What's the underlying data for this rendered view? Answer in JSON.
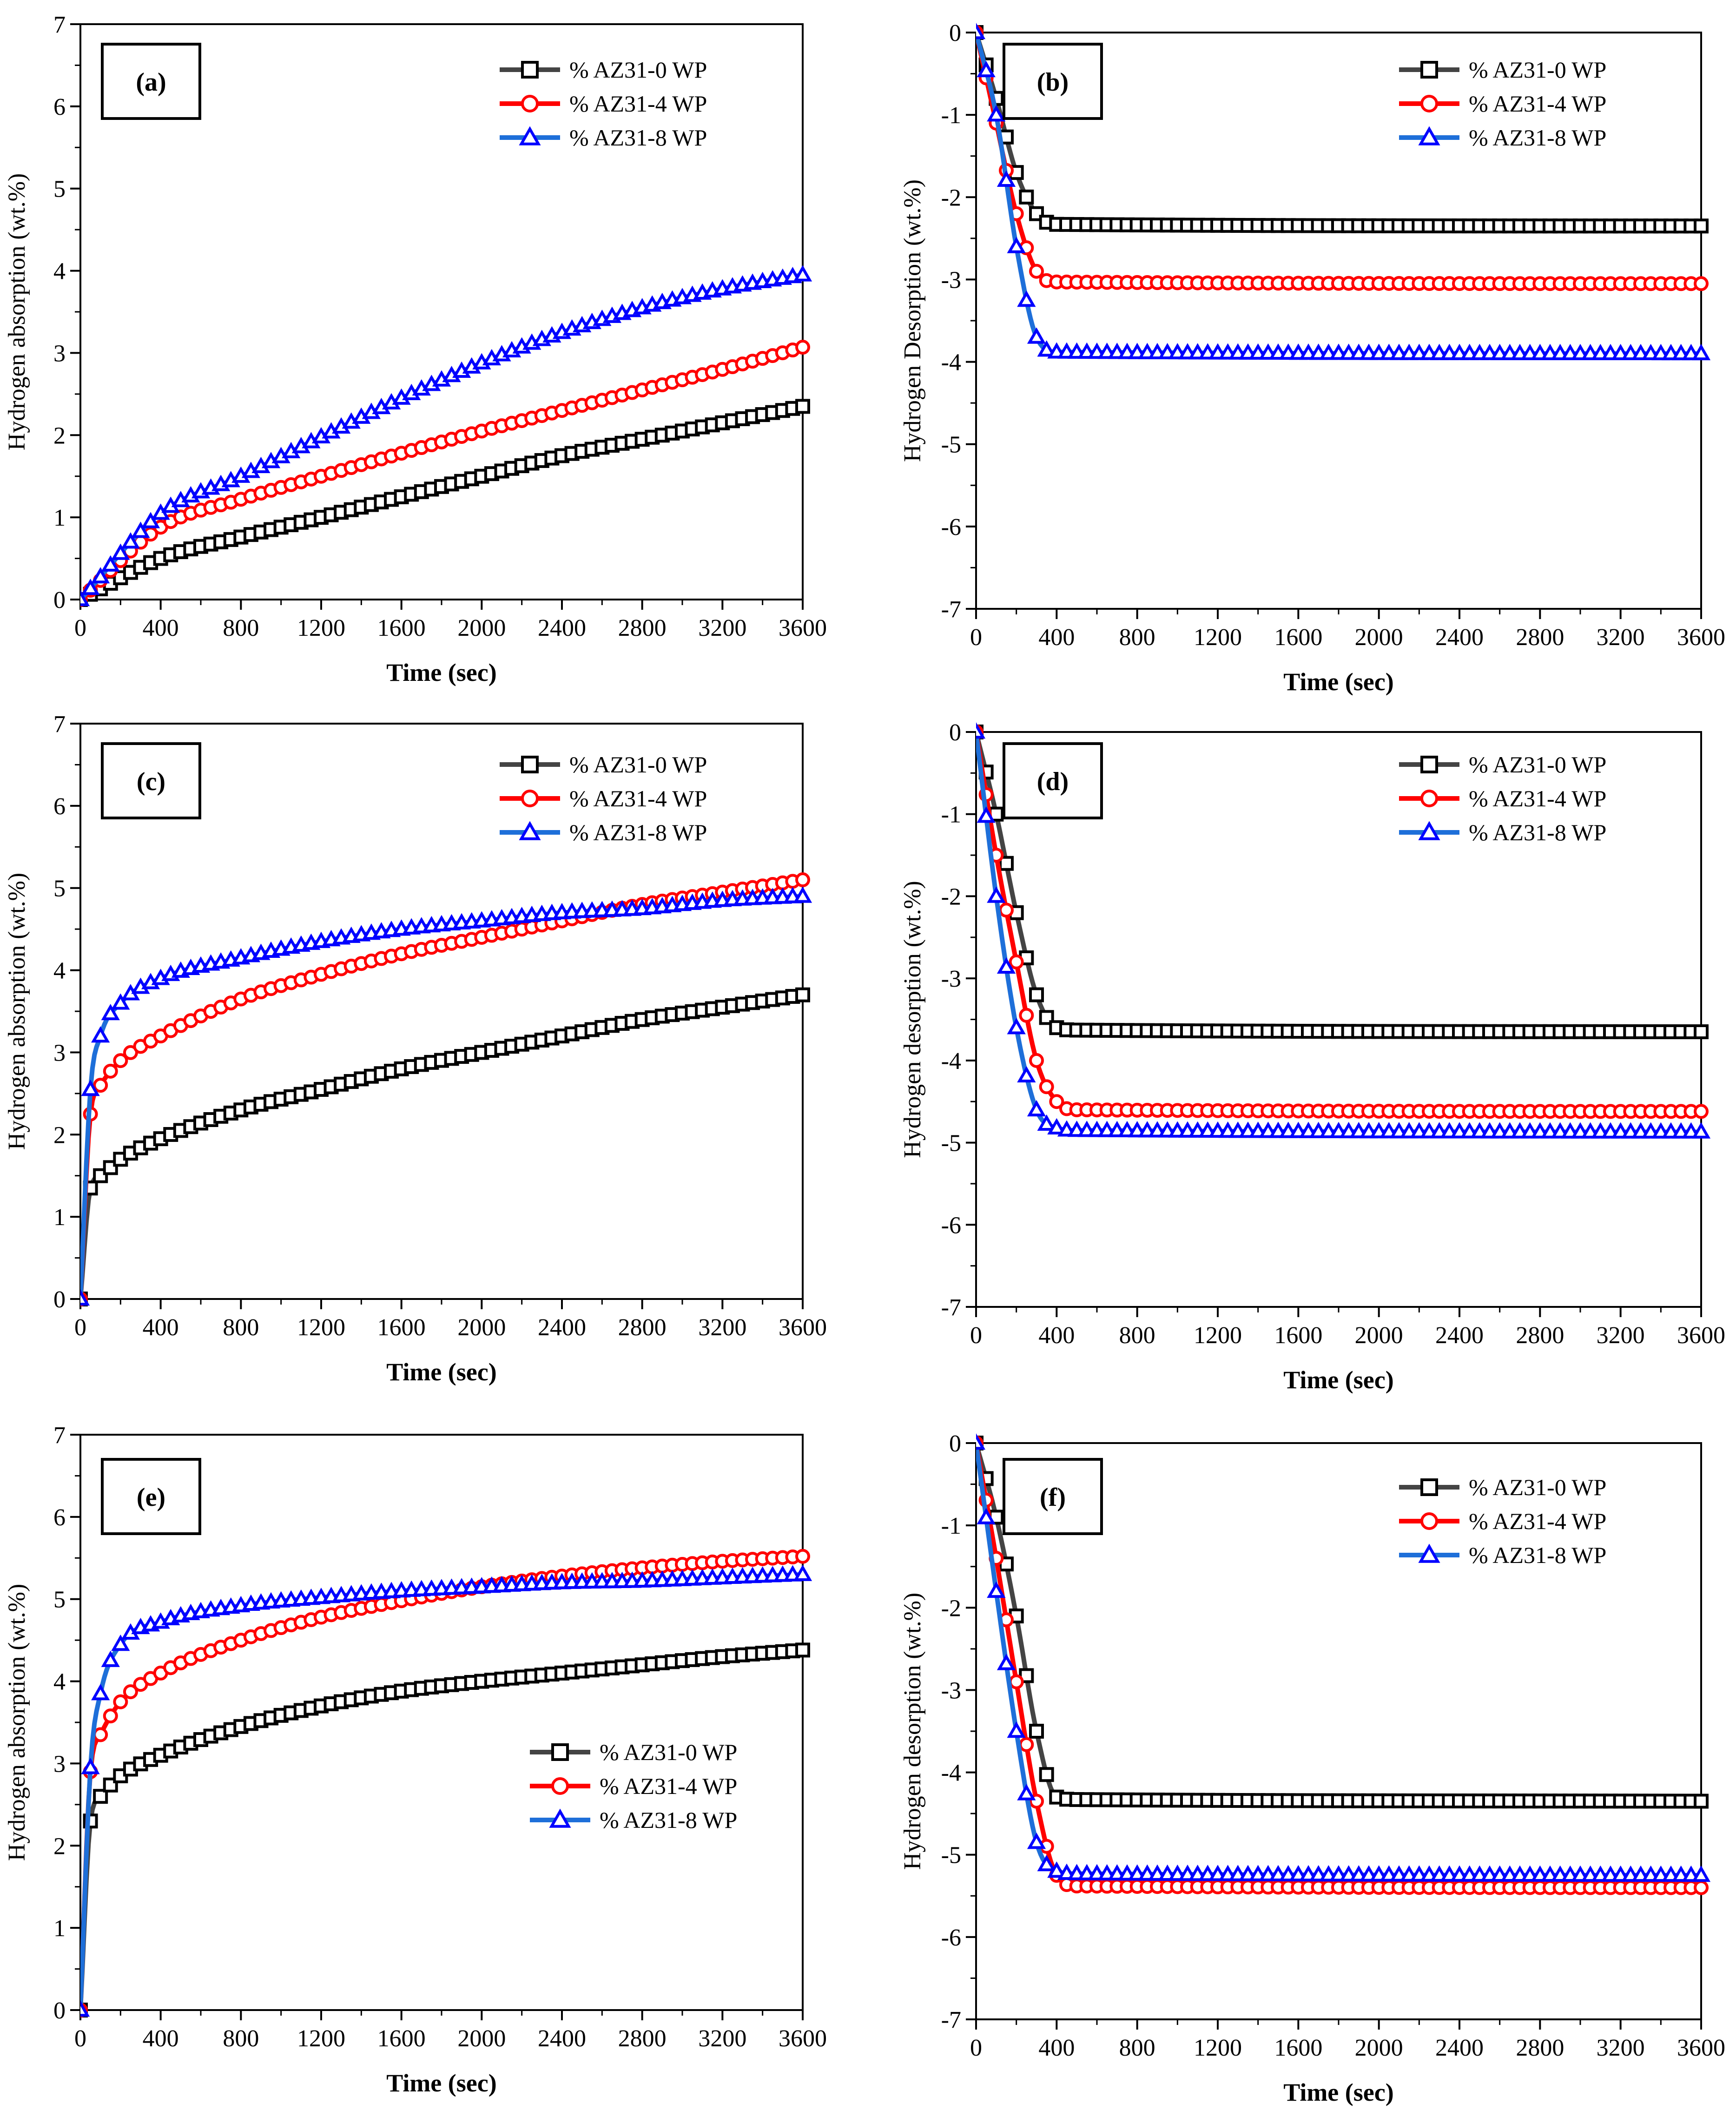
{
  "figure": {
    "series_styles": [
      {
        "name": "% AZ31-0 WP",
        "color": "#000000",
        "line_color": "#444444",
        "marker": "square"
      },
      {
        "name": "% AZ31-4 WP",
        "color": "#ff0000",
        "line_color": "#ff0000",
        "marker": "circle"
      },
      {
        "name": "% AZ31-8 WP",
        "color": "#0000ff",
        "line_color": "#1e6fd9",
        "marker": "triangle"
      }
    ]
  },
  "chart_data": [
    {
      "id": "a",
      "type": "line",
      "panel_label": "(a)",
      "xlabel": "Time (sec)",
      "ylabel": "Hydrogen absorption (wt.%)",
      "xlim": [
        0,
        3600
      ],
      "ylim": [
        0,
        7
      ],
      "xticks": [
        0,
        400,
        800,
        1200,
        1600,
        2000,
        2400,
        2800,
        3200,
        3600
      ],
      "yticks": [
        0,
        1,
        2,
        3,
        4,
        5,
        6,
        7
      ],
      "legend_position": "top-right",
      "x": [
        0,
        400,
        800,
        1200,
        1600,
        2000,
        2400,
        2800,
        3200,
        3600
      ],
      "series": [
        {
          "name": "% AZ31-0 WP",
          "values": [
            0,
            0.5,
            0.76,
            1.0,
            1.25,
            1.5,
            1.75,
            1.95,
            2.15,
            2.35
          ]
        },
        {
          "name": "% AZ31-4 WP",
          "values": [
            0,
            0.88,
            1.22,
            1.5,
            1.78,
            2.05,
            2.3,
            2.55,
            2.8,
            3.07
          ]
        },
        {
          "name": "% AZ31-8 WP",
          "values": [
            0,
            1.05,
            1.5,
            1.98,
            2.45,
            2.88,
            3.25,
            3.55,
            3.78,
            3.95
          ]
        }
      ]
    },
    {
      "id": "b",
      "type": "line",
      "panel_label": "(b)",
      "xlabel": "Time (sec)",
      "ylabel": "Hydrogen Desorption (wt.%)",
      "xlim": [
        0,
        3600
      ],
      "ylim": [
        -7,
        0
      ],
      "xticks": [
        0,
        400,
        800,
        1200,
        1600,
        2000,
        2400,
        2800,
        3200,
        3600
      ],
      "yticks": [
        0,
        -1,
        -2,
        -3,
        -4,
        -5,
        -6,
        -7
      ],
      "legend_position": "top-right",
      "x": [
        0,
        100,
        200,
        300,
        400,
        3600
      ],
      "series": [
        {
          "name": "% AZ31-0 WP",
          "values": [
            0,
            -0.8,
            -1.7,
            -2.2,
            -2.33,
            -2.35
          ]
        },
        {
          "name": "% AZ31-4 WP",
          "values": [
            0,
            -1.1,
            -2.2,
            -2.9,
            -3.03,
            -3.05
          ]
        },
        {
          "name": "% AZ31-8 WP",
          "values": [
            0,
            -1.0,
            -2.6,
            -3.7,
            -3.88,
            -3.9
          ]
        }
      ]
    },
    {
      "id": "c",
      "type": "line",
      "panel_label": "(c)",
      "xlabel": "Time (sec)",
      "ylabel": "Hydrogen absorption (wt.%)",
      "xlim": [
        0,
        3600
      ],
      "ylim": [
        0,
        7
      ],
      "xticks": [
        0,
        400,
        800,
        1200,
        1600,
        2000,
        2400,
        2800,
        3200,
        3600
      ],
      "yticks": [
        0,
        1,
        2,
        3,
        4,
        5,
        6,
        7
      ],
      "legend_position": "top-right",
      "x": [
        0,
        50,
        100,
        200,
        400,
        800,
        1200,
        1600,
        2000,
        2400,
        2800,
        3200,
        3600
      ],
      "series": [
        {
          "name": "% AZ31-0 WP",
          "values": [
            0,
            1.35,
            1.5,
            1.7,
            1.95,
            2.3,
            2.55,
            2.8,
            3.0,
            3.2,
            3.4,
            3.55,
            3.7
          ]
        },
        {
          "name": "% AZ31-4 WP",
          "values": [
            0,
            2.25,
            2.6,
            2.9,
            3.2,
            3.65,
            3.95,
            4.2,
            4.4,
            4.6,
            4.8,
            4.95,
            5.1
          ]
        },
        {
          "name": "% AZ31-8 WP",
          "values": [
            0,
            2.55,
            3.2,
            3.6,
            3.9,
            4.15,
            4.35,
            4.5,
            4.6,
            4.7,
            4.75,
            4.85,
            4.9
          ]
        }
      ]
    },
    {
      "id": "d",
      "type": "line",
      "panel_label": "(d)",
      "xlabel": "Time (sec)",
      "ylabel": "Hydrogen desorption (wt.%)",
      "xlim": [
        0,
        3600
      ],
      "ylim": [
        -7,
        0
      ],
      "xticks": [
        0,
        400,
        800,
        1200,
        1600,
        2000,
        2400,
        2800,
        3200,
        3600
      ],
      "yticks": [
        0,
        -1,
        -2,
        -3,
        -4,
        -5,
        -6,
        -7
      ],
      "legend_position": "top-right",
      "x": [
        0,
        100,
        200,
        300,
        400,
        500,
        3600
      ],
      "series": [
        {
          "name": "% AZ31-0 WP",
          "values": [
            0,
            -1.0,
            -2.2,
            -3.2,
            -3.6,
            -3.63,
            -3.65
          ]
        },
        {
          "name": "% AZ31-4 WP",
          "values": [
            0,
            -1.5,
            -2.8,
            -4.0,
            -4.5,
            -4.6,
            -4.62
          ]
        },
        {
          "name": "% AZ31-8 WP",
          "values": [
            0,
            -2.0,
            -3.6,
            -4.6,
            -4.82,
            -4.85,
            -4.87
          ]
        }
      ]
    },
    {
      "id": "e",
      "type": "line",
      "panel_label": "(e)",
      "xlabel": "Time (sec)",
      "ylabel": "Hydrogen absorption (wt.%)",
      "xlim": [
        0,
        3600
      ],
      "ylim": [
        0,
        7
      ],
      "xticks": [
        0,
        400,
        800,
        1200,
        1600,
        2000,
        2400,
        2800,
        3200,
        3600
      ],
      "yticks": [
        0,
        1,
        2,
        3,
        4,
        5,
        6,
        7
      ],
      "legend_position": "center-right",
      "x": [
        0,
        50,
        100,
        200,
        400,
        800,
        1200,
        1600,
        2000,
        2400,
        2800,
        3200,
        3600
      ],
      "series": [
        {
          "name": "% AZ31-0 WP",
          "values": [
            0,
            2.3,
            2.6,
            2.85,
            3.1,
            3.45,
            3.7,
            3.88,
            4.0,
            4.1,
            4.2,
            4.3,
            4.38
          ]
        },
        {
          "name": "% AZ31-4 WP",
          "values": [
            0,
            2.9,
            3.35,
            3.75,
            4.1,
            4.5,
            4.78,
            4.98,
            5.15,
            5.28,
            5.38,
            5.46,
            5.52
          ]
        },
        {
          "name": "% AZ31-8 WP",
          "values": [
            0,
            2.95,
            3.85,
            4.45,
            4.72,
            4.92,
            5.02,
            5.1,
            5.15,
            5.2,
            5.22,
            5.26,
            5.3
          ]
        }
      ]
    },
    {
      "id": "f",
      "type": "line",
      "panel_label": "(f)",
      "xlabel": "Time (sec)",
      "ylabel": "Hydrogen desorption (wt.%)",
      "xlim": [
        0,
        3600
      ],
      "ylim": [
        -7,
        0
      ],
      "xticks": [
        0,
        400,
        800,
        1200,
        1600,
        2000,
        2400,
        2800,
        3200,
        3600
      ],
      "yticks": [
        0,
        -1,
        -2,
        -3,
        -4,
        -5,
        -6,
        -7
      ],
      "legend_position": "top-right",
      "x": [
        0,
        100,
        200,
        300,
        400,
        500,
        3600
      ],
      "series": [
        {
          "name": "% AZ31-0 WP",
          "values": [
            0,
            -0.9,
            -2.1,
            -3.5,
            -4.3,
            -4.33,
            -4.35
          ]
        },
        {
          "name": "% AZ31-4 WP",
          "values": [
            0,
            -1.4,
            -2.9,
            -4.35,
            -5.25,
            -5.38,
            -5.4
          ]
        },
        {
          "name": "% AZ31-8 WP",
          "values": [
            0,
            -1.8,
            -3.5,
            -4.85,
            -5.2,
            -5.23,
            -5.25
          ]
        }
      ]
    }
  ]
}
